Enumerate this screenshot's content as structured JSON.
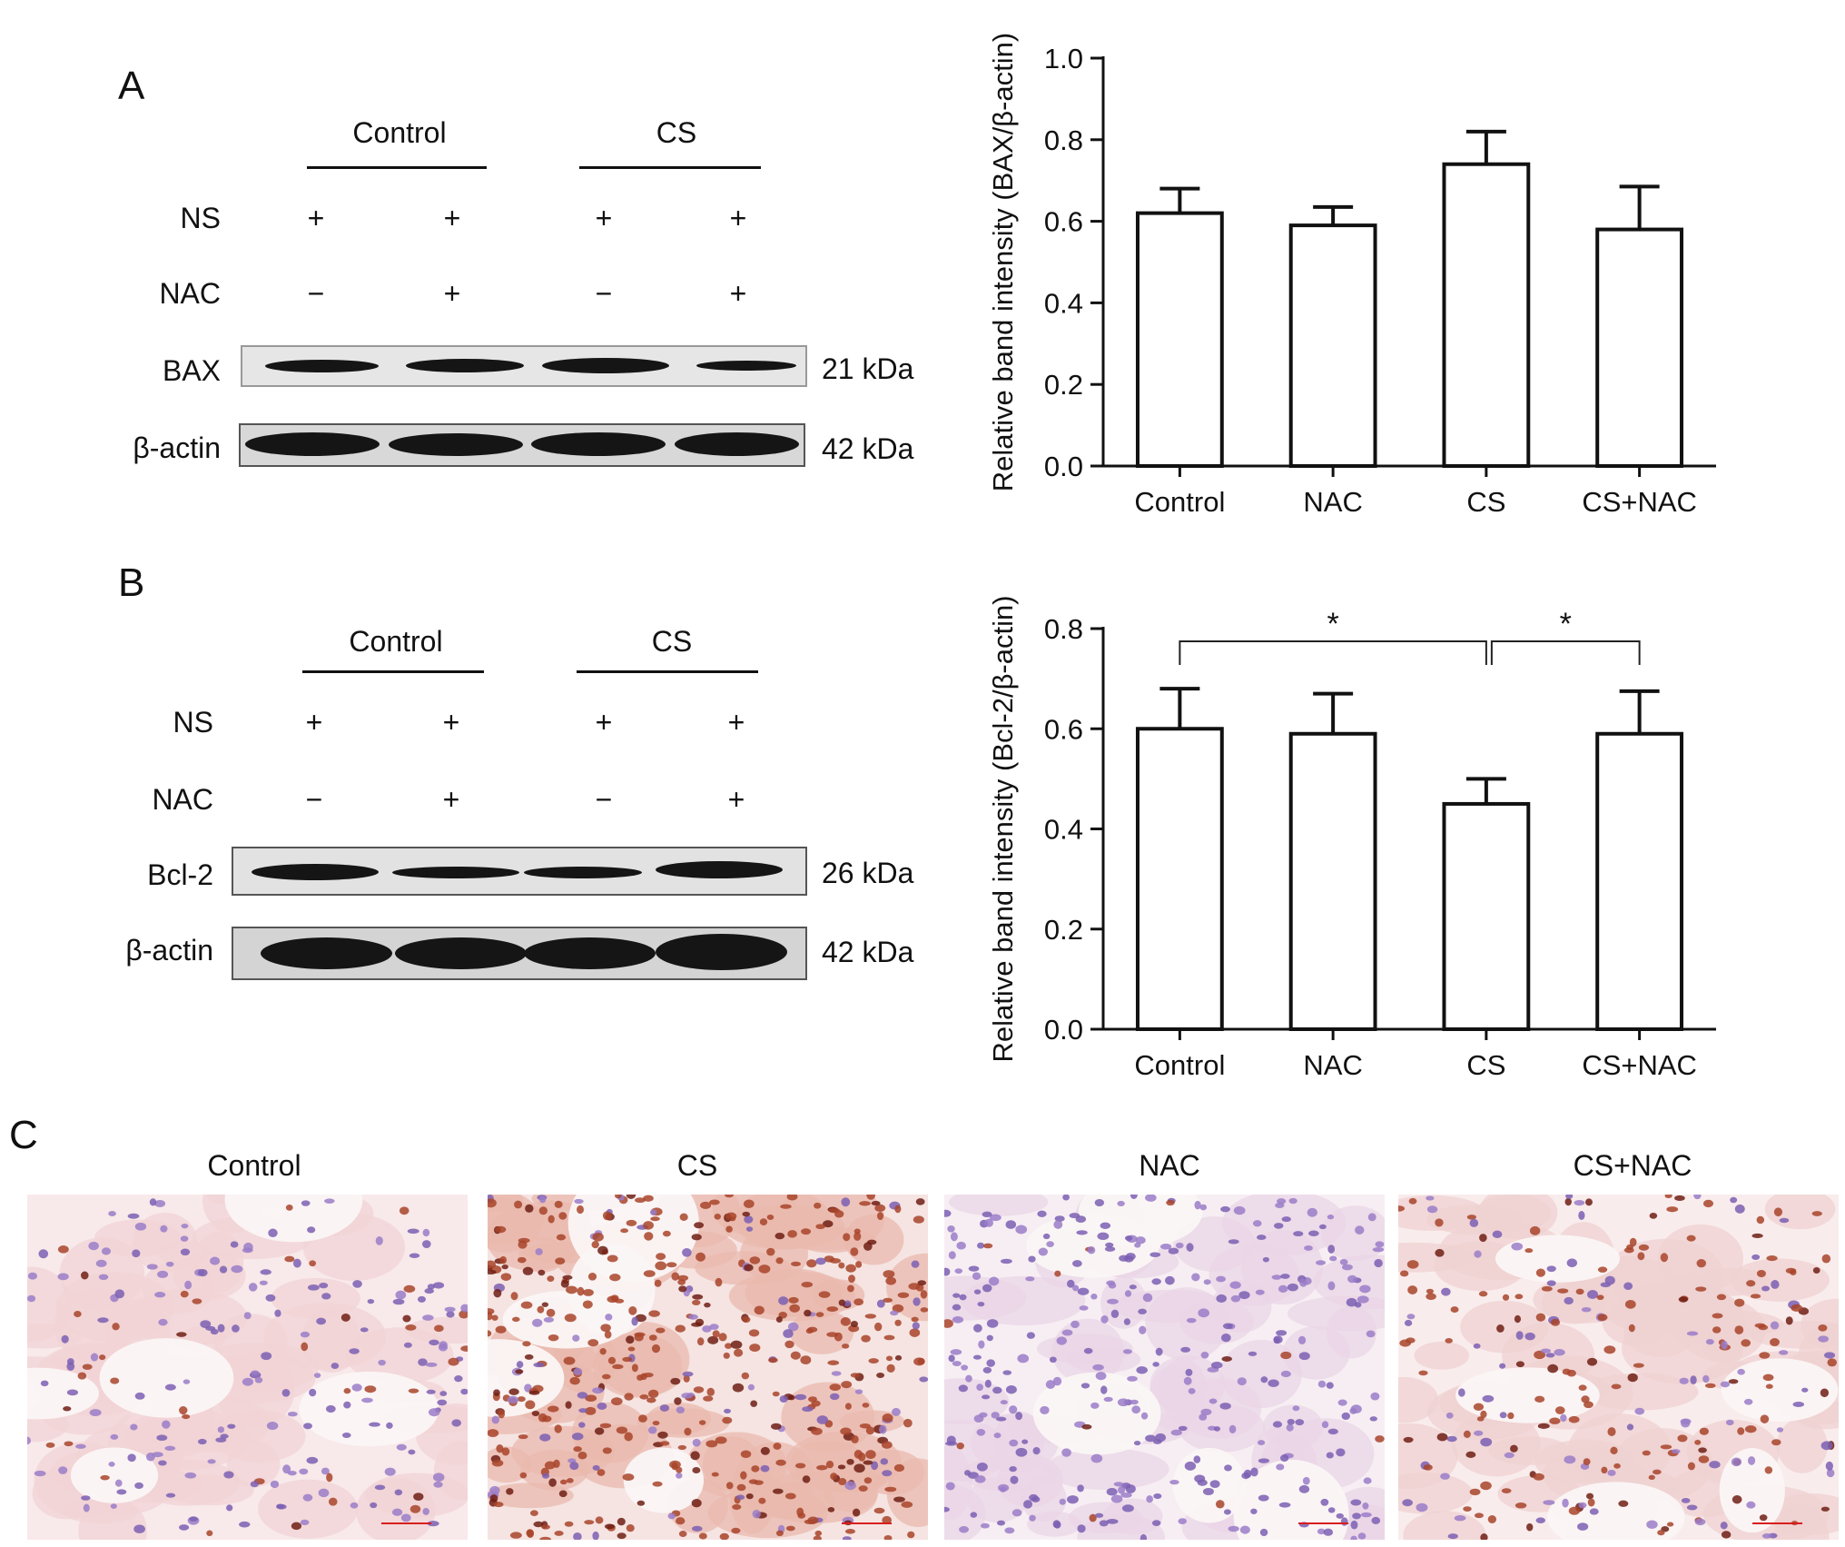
{
  "panels": {
    "A": {
      "label": "A",
      "groups": [
        "Control",
        "CS"
      ],
      "row_labels": [
        "NS",
        "NAC"
      ],
      "ns_signs": [
        "+",
        "+",
        "+",
        "+"
      ],
      "nac_signs": [
        "−",
        "+",
        "−",
        "+"
      ],
      "blots": [
        {
          "name": "BAX",
          "kda": "21 kDa"
        },
        {
          "name": "β-actin",
          "kda": "42 kDa"
        }
      ]
    },
    "B": {
      "label": "B",
      "groups": [
        "Control",
        "CS"
      ],
      "row_labels": [
        "NS",
        "NAC"
      ],
      "ns_signs": [
        "+",
        "+",
        "+",
        "+"
      ],
      "nac_signs": [
        "−",
        "+",
        "−",
        "+"
      ],
      "blots": [
        {
          "name": "Bcl-2",
          "kda": "26 kDa"
        },
        {
          "name": "β-actin",
          "kda": "42 kDa"
        }
      ]
    },
    "C": {
      "label": "C",
      "titles": [
        "Control",
        "CS",
        "NAC",
        "CS+NAC"
      ],
      "descriptions": [
        "light staining, sparse brown nuclei",
        "dense dark-brown nuclei",
        "mostly blue/purple nuclei",
        "moderate brown nuclei"
      ]
    }
  },
  "chart_data": [
    {
      "type": "bar",
      "categories": [
        "Control",
        "NAC",
        "CS",
        "CS+NAC"
      ],
      "values": [
        0.62,
        0.59,
        0.74,
        0.58
      ],
      "errors": [
        0.06,
        0.045,
        0.08,
        0.105
      ],
      "ylabel": "Relative band intensity (BAX/β-actin)",
      "ylim": [
        0,
        1.0
      ],
      "yticks": [
        "0.0",
        "0.2",
        "0.4",
        "0.6",
        "0.8",
        "1.0"
      ],
      "annotations": []
    },
    {
      "type": "bar",
      "categories": [
        "Control",
        "NAC",
        "CS",
        "CS+NAC"
      ],
      "values": [
        0.6,
        0.59,
        0.45,
        0.59
      ],
      "errors": [
        0.08,
        0.08,
        0.05,
        0.085
      ],
      "ylabel": "Relative band intensity (Bcl-2/β-actin)",
      "ylim": [
        0,
        0.8
      ],
      "yticks": [
        "0.0",
        "0.2",
        "0.4",
        "0.6",
        "0.8"
      ],
      "annotations": [
        {
          "from": "Control",
          "to": "CS",
          "text": "*"
        },
        {
          "from": "CS",
          "to": "CS+NAC",
          "text": "*"
        }
      ]
    }
  ]
}
